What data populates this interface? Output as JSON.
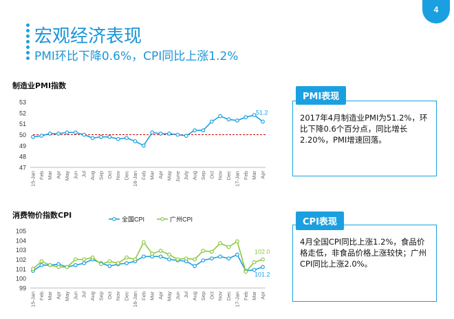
{
  "page": {
    "number": "4"
  },
  "header": {
    "title": "宏观经济表现",
    "subtitle": "PMI环比下降0.6%，CPI同比上涨1.2%"
  },
  "panels": [
    {
      "head": "PMI表现",
      "text": "2017年4月制造业PMI为51.2%，环比下降0.6个百分点，同比增长2.20%，PMI增速回落。"
    },
    {
      "head": "CPI表现",
      "text": "4月全国CPI同比上涨1.2%，食品价格走低，非食品价格上涨较快；广州CPI同比上涨2.0%。"
    }
  ],
  "chart_data": [
    {
      "type": "line",
      "title": "制造业PMI指数",
      "categories": [
        "15-Jan",
        "Feb",
        "Mar",
        "Apr",
        "May",
        "Jun",
        "Jul",
        "Aug",
        "Sep",
        "Oct",
        "Nov",
        "Dec",
        "16-Jan",
        "Feb",
        "Mar",
        "Apr",
        "May",
        "June",
        "July",
        "Aug",
        "Sep",
        "Oct",
        "Nov",
        "Dec",
        "17-Jan",
        "Feb",
        "Mar",
        "Apr"
      ],
      "series": [
        {
          "name": "",
          "color": "#1aa0e0",
          "values": [
            49.8,
            49.9,
            50.1,
            50.1,
            50.2,
            50.2,
            50.0,
            49.7,
            49.8,
            49.8,
            49.6,
            49.7,
            49.4,
            49.0,
            50.2,
            50.1,
            50.1,
            50.0,
            49.9,
            50.4,
            50.4,
            51.2,
            51.7,
            51.4,
            51.3,
            51.6,
            51.8,
            51.2
          ]
        }
      ],
      "reference_line": {
        "value": 50,
        "color": "#cc0000",
        "style": "dashed"
      },
      "end_label": "51.2",
      "ylim": [
        47,
        53
      ],
      "yticks": [
        47,
        48,
        49,
        50,
        51,
        52,
        53
      ],
      "grid": false
    },
    {
      "type": "line",
      "title": "消费物价指数CPI",
      "categories": [
        "15-Jan",
        "Feb",
        "Mar",
        "Apr",
        "May",
        "Jun",
        "Jul",
        "Aug",
        "Sep",
        "Oct",
        "Nov",
        "Dec",
        "16-Jan",
        "Feb",
        "Mar",
        "Apr",
        "May",
        "Jun",
        "Jul",
        "Aug",
        "Sep",
        "Oct",
        "Nov",
        "Dec",
        "17-Jan",
        "Feb",
        "Mar",
        "Apr"
      ],
      "series": [
        {
          "name": "全国CPI",
          "color": "#1aa0e0",
          "values": [
            100.8,
            101.4,
            101.4,
            101.5,
            101.2,
            101.4,
            101.6,
            102.0,
            101.6,
            101.3,
            101.5,
            101.6,
            101.8,
            102.3,
            102.3,
            102.3,
            102.0,
            101.9,
            101.8,
            101.3,
            101.9,
            102.1,
            102.3,
            102.1,
            102.5,
            100.8,
            100.9,
            101.2
          ]
        },
        {
          "name": "广州CPI",
          "color": "#8cc63f",
          "values": [
            101.0,
            101.8,
            101.4,
            101.2,
            101.2,
            102.0,
            102.0,
            102.2,
            101.5,
            101.8,
            101.6,
            102.2,
            102.0,
            103.8,
            102.6,
            102.9,
            102.5,
            102.0,
            102.1,
            102.0,
            102.9,
            102.8,
            103.7,
            103.3,
            103.9,
            100.7,
            101.7,
            102.0
          ]
        }
      ],
      "end_labels": {
        "广州CPI": "102.0",
        "全国CPI": "101.2"
      },
      "ylim": [
        99,
        105
      ],
      "yticks": [
        99,
        100,
        101,
        102,
        103,
        104,
        105
      ],
      "legend": "top-center",
      "grid": false
    }
  ]
}
